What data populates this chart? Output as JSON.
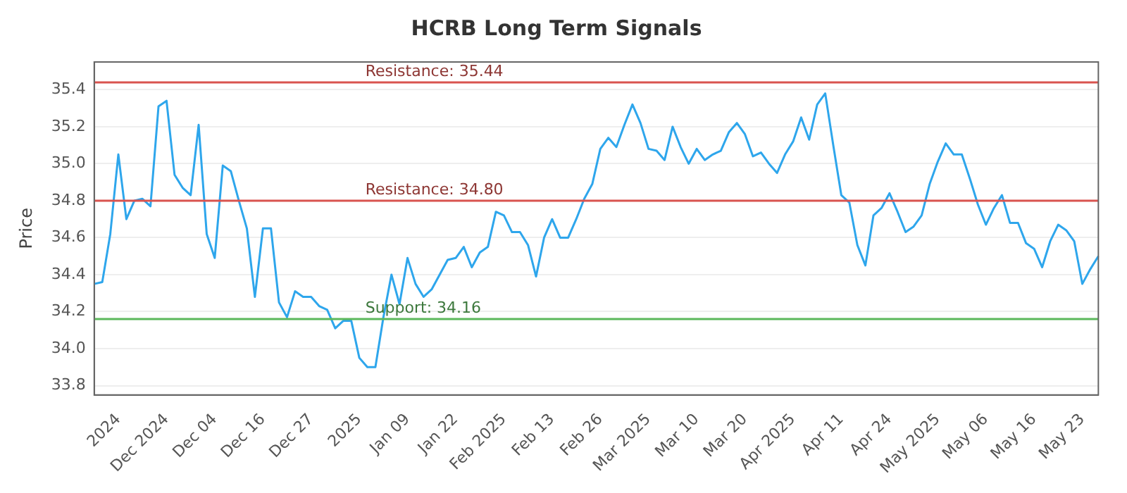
{
  "chart_data": {
    "type": "line",
    "title": "HCRB Long Term Signals",
    "ylabel": "Price",
    "categories": [
      null,
      null,
      null,
      "2024",
      null,
      null,
      null,
      null,
      null,
      "Dec 2024",
      null,
      null,
      null,
      null,
      null,
      "Dec 04",
      null,
      null,
      null,
      null,
      null,
      "Dec 16",
      null,
      null,
      null,
      null,
      null,
      "Dec 27",
      null,
      null,
      null,
      null,
      null,
      "2025",
      null,
      null,
      null,
      null,
      null,
      "Jan 09",
      null,
      null,
      null,
      null,
      null,
      "Jan 22",
      null,
      null,
      null,
      null,
      null,
      "Feb 2025",
      null,
      null,
      null,
      null,
      null,
      "Feb 13",
      null,
      null,
      null,
      null,
      null,
      "Feb 26",
      null,
      null,
      null,
      null,
      null,
      "Mar 2025",
      null,
      null,
      null,
      null,
      null,
      "Mar 10",
      null,
      null,
      null,
      null,
      null,
      "Mar 20",
      null,
      null,
      null,
      null,
      null,
      "Apr 2025",
      null,
      null,
      null,
      null,
      null,
      "Apr 11",
      null,
      null,
      null,
      null,
      null,
      "Apr 24",
      null,
      null,
      null,
      null,
      null,
      "May 2025",
      null,
      null,
      null,
      null,
      null,
      "May 06",
      null,
      null,
      null,
      null,
      null,
      "May 16",
      null,
      null,
      null,
      null,
      null,
      "May 23",
      null,
      null
    ],
    "series": [
      {
        "color": "#2ea6ec",
        "values": [
          34.35,
          34.36,
          34.62,
          35.05,
          34.7,
          34.8,
          34.81,
          34.77,
          35.31,
          35.34,
          34.94,
          34.87,
          34.83,
          35.21,
          34.62,
          34.49,
          34.99,
          34.96,
          34.8,
          34.65,
          34.28,
          34.65,
          34.65,
          34.25,
          34.17,
          34.31,
          34.28,
          34.28,
          34.23,
          34.21,
          34.11,
          34.15,
          34.15,
          33.95,
          33.9,
          33.9,
          34.17,
          34.4,
          34.24,
          34.49,
          34.35,
          34.28,
          34.32,
          34.4,
          34.48,
          34.49,
          34.55,
          34.44,
          34.52,
          34.55,
          34.74,
          34.72,
          34.63,
          34.63,
          34.56,
          34.39,
          34.6,
          34.7,
          34.6,
          34.6,
          34.7,
          34.81,
          34.89,
          35.08,
          35.14,
          35.09,
          35.21,
          35.32,
          35.22,
          35.08,
          35.07,
          35.02,
          35.2,
          35.09,
          35.0,
          35.08,
          35.02,
          35.05,
          35.07,
          35.17,
          35.22,
          35.16,
          35.04,
          35.06,
          35.0,
          34.95,
          35.05,
          35.12,
          35.25,
          35.13,
          35.32,
          35.38,
          35.1,
          34.83,
          34.79,
          34.56,
          34.45,
          34.72,
          34.76,
          34.84,
          34.74,
          34.63,
          34.66,
          34.72,
          34.89,
          35.01,
          35.11,
          35.05,
          35.05,
          34.92,
          34.78,
          34.67,
          34.76,
          34.83,
          34.68,
          34.68,
          34.57,
          34.54,
          34.44,
          34.58,
          34.67,
          34.64,
          34.58,
          34.35,
          34.43,
          34.5
        ]
      }
    ],
    "ylim": [
      33.75,
      35.55
    ],
    "yticks": [
      33.8,
      {
        "value": 34,
        "label": "34.0"
      },
      34.2,
      34.4,
      34.6,
      34.8,
      {
        "value": 35,
        "label": "35.0"
      },
      35.2,
      35.4
    ],
    "ref_lines": [
      {
        "axis": "y",
        "value": 35.44,
        "label": "Resistance: 35.44",
        "color": "#d9534f"
      },
      {
        "axis": "y",
        "value": 34.8,
        "label": "Resistance: 34.80",
        "color": "#d9534f"
      },
      {
        "axis": "y",
        "value": 34.16,
        "label": "Support: 34.16",
        "color": "#5cb85c"
      }
    ],
    "grid": "y",
    "legend": false,
    "marker": "none",
    "line_style": "solid"
  }
}
